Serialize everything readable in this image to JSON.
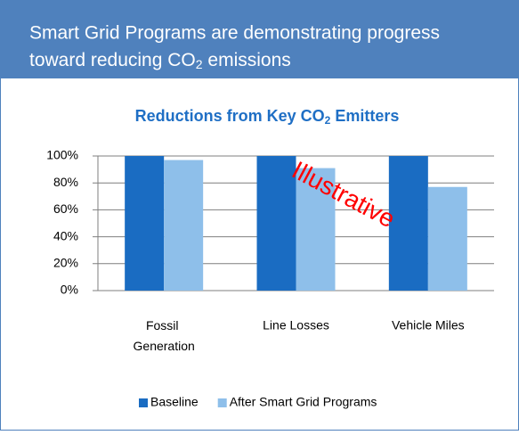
{
  "header": {
    "title_start": "Smart Grid Programs are demonstrating progress",
    "title_line2": "toward reducing CO",
    "title_sub": "2",
    "title_end": " emissions"
  },
  "chart_data": {
    "type": "bar",
    "title_start": "Reductions from Key CO",
    "title_sub": "2",
    "title_end": " Emitters",
    "categories": [
      "Fossil Generation",
      "Line Losses",
      "Vehicle Miles"
    ],
    "series": [
      {
        "name": "Baseline",
        "color": "#1a6cc2",
        "values": [
          100,
          100,
          100
        ]
      },
      {
        "name": "After Smart Grid Programs",
        "color": "#8ebfea",
        "values": [
          97,
          91,
          77
        ]
      }
    ],
    "ylim": [
      0,
      100
    ],
    "yticks": [
      {
        "value": 0,
        "label": "0%"
      },
      {
        "value": 20,
        "label": "20%"
      },
      {
        "value": 40,
        "label": "40%"
      },
      {
        "value": 60,
        "label": "60%"
      },
      {
        "value": 80,
        "label": "80%"
      },
      {
        "value": 100,
        "label": "100%"
      }
    ],
    "grid": true,
    "annotation": "Illustrative",
    "legend": "bottom"
  }
}
